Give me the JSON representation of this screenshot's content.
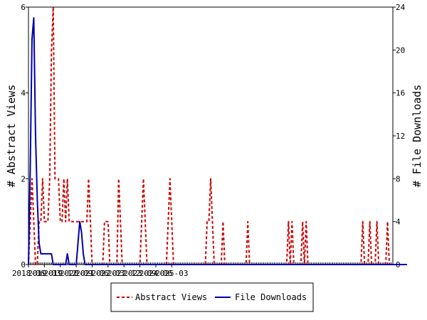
{
  "chart_data": {
    "type": "line",
    "ylabel_left": "# Abstract Views",
    "ylabel_right": "# File Downloads",
    "x_tick_labels": [
      "2018-06",
      "2019-03",
      "2019-12",
      "2020-09",
      "2021-06",
      "2022-03",
      "2022-12",
      "2023-09",
      "2024-06",
      "2025-03"
    ],
    "x_start": "2018-06",
    "ylim_left": [
      0,
      6
    ],
    "ylim_right": [
      0,
      24
    ],
    "y_ticks_left": [
      0,
      2,
      4,
      6
    ],
    "y_ticks_right": [
      0,
      4,
      8,
      12,
      16,
      20,
      24
    ],
    "legend_position": "bottom",
    "series": [
      {
        "name": "Abstract Views",
        "axis": "left",
        "color": "#cc0000",
        "style": "dashed",
        "values": [
          0,
          1,
          2,
          1,
          0,
          0,
          1,
          1,
          2,
          1,
          1,
          1,
          2,
          5,
          6,
          2,
          2,
          2,
          1,
          1,
          2,
          1,
          2,
          1,
          1,
          1,
          1,
          1,
          1,
          1,
          1,
          1,
          1,
          1,
          2,
          1,
          0,
          0,
          0,
          0,
          0,
          0,
          0,
          1,
          1,
          1,
          0,
          0,
          0,
          0,
          0,
          2,
          1,
          0,
          0,
          0,
          0,
          0,
          0,
          0,
          0,
          0,
          0,
          0,
          1,
          2,
          1,
          0,
          0,
          0,
          0,
          0,
          0,
          0,
          0,
          0,
          0,
          0,
          0,
          1,
          2,
          1,
          0,
          0,
          0,
          0,
          0,
          0,
          0,
          0,
          0,
          0,
          0,
          0,
          0,
          0,
          0,
          0,
          0,
          0,
          0,
          1,
          1,
          2,
          1,
          0,
          0,
          0,
          0,
          0,
          1,
          0,
          0,
          0,
          0,
          0,
          0,
          0,
          0,
          0,
          0,
          0,
          0,
          0,
          1,
          0,
          0,
          0,
          0,
          0,
          0,
          0,
          0,
          0,
          0,
          0,
          0,
          0,
          0,
          0,
          0,
          0,
          0,
          0,
          0,
          0,
          0,
          1,
          0,
          1,
          0,
          0,
          0,
          0,
          0,
          1,
          0,
          1,
          0,
          0,
          0,
          0,
          0,
          0,
          0,
          0,
          0,
          0,
          0,
          0,
          0,
          0,
          0,
          0,
          0,
          0,
          0,
          0,
          0,
          0,
          0,
          0,
          0,
          0,
          0,
          0,
          0,
          0,
          0,
          1,
          0,
          0,
          0,
          1,
          0,
          0,
          0,
          1,
          0,
          0,
          0,
          0,
          0,
          1,
          0,
          0,
          0
        ]
      },
      {
        "name": "File Downloads",
        "axis": "right",
        "color": "#0000aa",
        "style": "solid",
        "values": [
          0,
          9,
          21,
          23,
          12,
          6,
          2,
          1,
          1,
          1,
          1,
          1,
          1,
          1,
          0,
          0,
          0,
          0,
          0,
          0,
          0,
          0,
          1,
          0,
          0,
          0,
          0,
          0,
          2,
          4,
          3,
          1,
          0,
          0,
          0,
          0,
          0,
          0,
          0,
          0,
          0,
          0,
          0,
          0,
          0,
          0,
          0,
          0,
          0,
          0,
          0,
          0,
          0,
          0,
          0,
          0,
          0,
          0,
          0,
          0,
          0,
          0,
          0,
          0,
          0,
          0,
          0,
          0,
          0,
          0,
          0,
          0,
          0,
          0,
          0,
          0,
          0,
          0,
          0,
          0,
          0,
          0,
          0,
          0,
          0,
          0,
          0,
          0,
          0,
          0,
          0,
          0,
          0,
          0,
          0,
          0,
          0,
          0,
          0,
          0,
          0,
          0,
          0,
          0,
          0,
          0,
          0,
          0,
          0,
          0,
          0,
          0,
          0,
          0,
          0,
          0,
          0,
          0,
          0,
          0,
          0,
          0,
          0,
          0,
          0,
          0,
          0,
          0,
          0,
          0,
          0,
          0,
          0,
          0,
          0,
          0,
          0,
          0,
          0,
          0,
          0,
          0,
          0,
          0,
          0,
          0,
          0,
          0,
          0,
          0,
          0,
          0,
          0,
          0,
          0,
          0,
          0,
          0,
          0,
          0,
          0,
          0,
          0,
          0,
          0,
          0,
          0,
          0,
          0,
          0,
          0,
          0,
          0,
          0,
          0,
          0,
          0,
          0,
          0,
          0,
          0,
          0,
          0,
          0,
          0,
          0,
          0,
          0,
          0,
          0,
          0,
          0,
          0,
          0,
          0,
          0,
          0,
          0,
          0,
          0,
          0,
          0,
          0,
          0,
          0,
          0,
          0,
          0,
          0,
          0,
          0,
          0,
          0,
          0,
          0
        ]
      }
    ]
  }
}
